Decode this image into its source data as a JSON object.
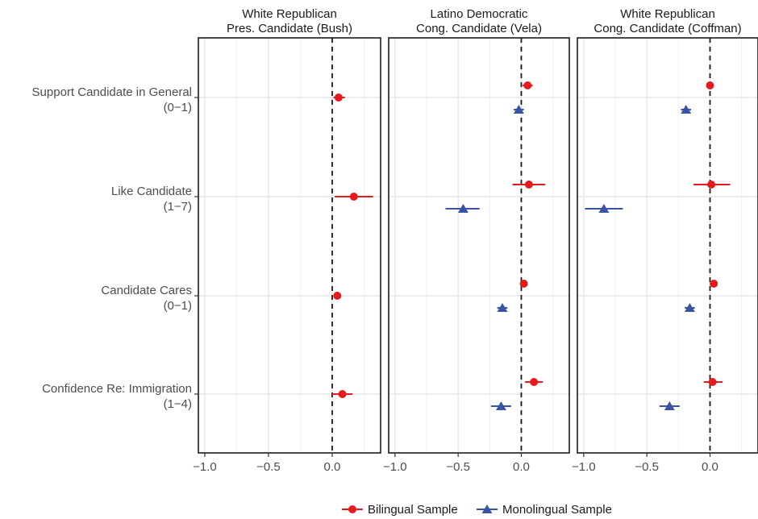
{
  "chart_data": {
    "type": "scatter",
    "subtype": "dot-and-whisker, faceted",
    "xlim": [
      -1.05,
      0.38
    ],
    "xticks": [
      -1.0,
      -0.5,
      0.0
    ],
    "xtick_labels": [
      "-1.0",
      "-0.5",
      "0.0"
    ],
    "reference_line_x": 0,
    "grid": true,
    "legend_position": "bottom",
    "categories": [
      {
        "line1": "Support Candidate in General",
        "line2": "(0−1)"
      },
      {
        "line1": "Like Candidate",
        "line2": "(1−7)"
      },
      {
        "line1": "Candidate Cares",
        "line2": "(0−1)"
      },
      {
        "line1": "Confidence Re: Immigration",
        "line2": "(1−4)"
      }
    ],
    "series": [
      {
        "name": "Bilingual Sample",
        "color": "#e41a1c",
        "marker": "circle"
      },
      {
        "name": "Monolingual Sample",
        "color": "#3a53a4",
        "marker": "triangle"
      }
    ],
    "facets": [
      {
        "title_line1": "White Republican",
        "title_line2": "Pres. Candidate (Bush)",
        "points": [
          {
            "category": 0,
            "series": 0,
            "est": 0.05,
            "lo": 0.01,
            "hi": 0.1
          },
          {
            "category": 1,
            "series": 0,
            "est": 0.17,
            "lo": 0.02,
            "hi": 0.32
          },
          {
            "category": 2,
            "series": 0,
            "est": 0.04,
            "lo": 0.01,
            "hi": 0.07
          },
          {
            "category": 3,
            "series": 0,
            "est": 0.08,
            "lo": 0.0,
            "hi": 0.16
          }
        ]
      },
      {
        "title_line1": "Latino Democratic",
        "title_line2": "Cong. Candidate (Vela)",
        "points": [
          {
            "category": 0,
            "series": 0,
            "est": 0.05,
            "lo": 0.01,
            "hi": 0.09
          },
          {
            "category": 0,
            "series": 1,
            "est": -0.02,
            "lo": -0.06,
            "hi": 0.02
          },
          {
            "category": 1,
            "series": 0,
            "est": 0.06,
            "lo": -0.07,
            "hi": 0.19
          },
          {
            "category": 1,
            "series": 1,
            "est": -0.46,
            "lo": -0.6,
            "hi": -0.33
          },
          {
            "category": 2,
            "series": 0,
            "est": 0.02,
            "lo": 0.0,
            "hi": 0.04
          },
          {
            "category": 2,
            "series": 1,
            "est": -0.15,
            "lo": -0.19,
            "hi": -0.11
          },
          {
            "category": 3,
            "series": 0,
            "est": 0.1,
            "lo": 0.03,
            "hi": 0.17
          },
          {
            "category": 3,
            "series": 1,
            "est": -0.16,
            "lo": -0.24,
            "hi": -0.08
          }
        ]
      },
      {
        "title_line1": "White Republican",
        "title_line2": "Cong. Candidate (Coffman)",
        "points": [
          {
            "category": 0,
            "series": 0,
            "est": 0.0,
            "lo": -0.03,
            "hi": 0.03
          },
          {
            "category": 0,
            "series": 1,
            "est": -0.19,
            "lo": -0.23,
            "hi": -0.15
          },
          {
            "category": 1,
            "series": 0,
            "est": 0.01,
            "lo": -0.13,
            "hi": 0.16
          },
          {
            "category": 1,
            "series": 1,
            "est": -0.84,
            "lo": -0.99,
            "hi": -0.69
          },
          {
            "category": 2,
            "series": 0,
            "est": 0.03,
            "lo": 0.0,
            "hi": 0.06
          },
          {
            "category": 2,
            "series": 1,
            "est": -0.16,
            "lo": -0.2,
            "hi": -0.12
          },
          {
            "category": 3,
            "series": 0,
            "est": 0.02,
            "lo": -0.05,
            "hi": 0.1
          },
          {
            "category": 3,
            "series": 1,
            "est": -0.32,
            "lo": -0.4,
            "hi": -0.24
          }
        ]
      }
    ]
  }
}
